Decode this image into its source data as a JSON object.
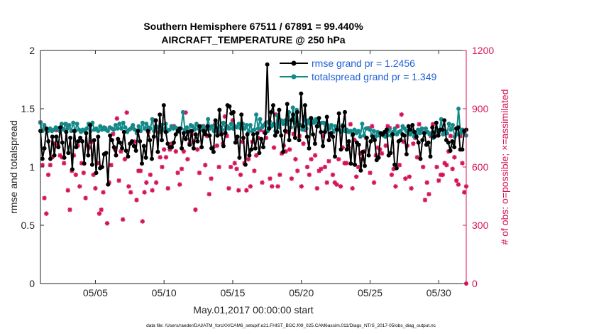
{
  "chart_data": {
    "type": "line",
    "title_line1": "Southern Hemisphere 67511 / 67891 = 99.440%",
    "title_line2": "AIRCRAFT_TEMPERATURE @ 250 hPa",
    "xlabel": "May.01,2017 00:00:00 start",
    "ylabel": "rmse and totalspread",
    "ylabel_right": "# of obs: o=possible; ×=assimilated",
    "footnote": "data file: /Users/raeder/DAI/ATM_forcXX/CAM6_setup/f.e21.FHIST_BGC.f09_025.CAM6assim.011/Diags_NTrS_2017-05/obs_diag_output.nc",
    "xlim": [
      1,
      32
    ],
    "ylim": [
      0,
      2
    ],
    "ylim_right": [
      0,
      1200
    ],
    "x_ticks": [
      5,
      10,
      15,
      20,
      25,
      30
    ],
    "x_tick_labels": [
      "05/05",
      "05/10",
      "05/15",
      "05/20",
      "05/25",
      "05/30"
    ],
    "y_ticks": [
      0,
      0.5,
      1,
      1.5,
      2
    ],
    "y_tick_labels": [
      "0",
      "0.5",
      "1",
      "1.5",
      "2"
    ],
    "y_right_ticks": [
      0,
      300,
      600,
      900,
      1200
    ],
    "y_right_tick_labels": [
      "0",
      "300",
      "600",
      "900",
      "1200"
    ],
    "colors": {
      "rmse": "#000000",
      "spread": "#138a8a",
      "obs": "#d4145a",
      "legend_text": "#1f5fd6",
      "axis_right": "#d4145a"
    },
    "series": [
      {
        "name": "rmse grand pr = 1.2456",
        "axis": "left",
        "values": [
          1.31,
          1.07,
          1.16,
          1.33,
          1.22,
          1.07,
          1.26,
          1.1,
          1.26,
          1.17,
          1.34,
          1.21,
          1.08,
          1.3,
          1.12,
          1.25,
          0.98,
          1.31,
          1.17,
          1.22,
          1.25,
          1.22,
          1.03,
          1.29,
          1.1,
          1.36,
          1.02,
          1.23,
          0.95,
          1.26,
          0.99,
          1.0,
          1.11,
          1.12,
          0.85,
          1.27,
          1.23,
          1.17,
          1.1,
          1.24,
          1.21,
          1.16,
          1.3,
          1.14,
          1.09,
          1.2,
          1.22,
          1.18,
          1.14,
          1.31,
          1.22,
          1.03,
          1.18,
          1.08,
          1.31,
          1.23,
          1.07,
          1.26,
          1.4,
          1.13,
          1.45,
          1.23,
          1.53,
          1.3,
          1.2,
          1.17,
          1.17,
          1.21,
          1.28,
          1.31,
          1.33,
          1.16,
          1.29,
          1.24,
          1.3,
          1.19,
          1.31,
          1.16,
          1.28,
          1.22,
          1.35,
          1.17,
          1.31,
          1.28,
          1.35,
          1.27,
          1.16,
          1.13,
          1.4,
          1.27,
          1.49,
          1.28,
          1.18,
          1.29,
          1.53,
          1.52,
          1.46,
          1.47,
          1.21,
          1.26,
          1.08,
          1.45,
          1.25,
          1.02,
          1.28,
          1.1,
          1.15,
          1.28,
          1.16,
          1.29,
          1.12,
          1.24,
          1.17,
          1.29,
          1.88,
          1.33,
          1.47,
          1.53,
          1.27,
          1.3,
          1.49,
          1.27,
          1.13,
          1.31,
          1.54,
          1.23,
          1.4,
          1.45,
          1.25,
          1.47,
          1.23,
          1.63,
          1.35,
          1.53,
          1.26,
          1.16,
          1.42,
          1.28,
          1.2,
          1.35,
          1.42,
          1.3,
          1.18,
          1.3,
          1.43,
          1.23,
          1.29,
          1.26,
          1.09,
          1.32,
          1.46,
          1.15,
          1.35,
          1.47,
          1.15,
          1.22,
          1.03,
          1.28,
          1.02,
          1.21,
          1.19,
          0.97,
          1.13,
          1.01,
          1.25,
          1.1,
          1.22,
          1.26,
          1.23,
          1.06,
          1.08,
          1.29,
          1.28,
          1.3,
          1.32,
          1.1,
          1.12,
          1.28,
          1.02,
          0.99,
          1.22,
          1.23,
          1.28,
          1.27,
          1.11,
          1.35,
          1.32,
          1.36,
          1.3,
          1.26,
          1.21,
          1.07,
          1.23,
          1.29,
          1.19,
          1.21,
          1.09,
          1.34,
          1.26,
          1.38,
          1.27,
          1.32,
          1.32,
          1.4,
          1.23,
          1.21,
          1.14,
          1.22,
          1.17,
          1.33,
          1.34,
          1.15,
          1.15,
          1.31,
          1.32
        ]
      },
      {
        "name": "totalspread grand pr = 1.349",
        "axis": "left",
        "values": [
          1.38,
          1.31,
          1.36,
          1.32,
          1.31,
          1.33,
          1.31,
          1.32,
          1.34,
          1.33,
          1.31,
          1.37,
          1.32,
          1.37,
          1.33,
          1.36,
          1.31,
          1.38,
          1.31,
          1.37,
          1.32,
          1.3,
          1.32,
          1.31,
          1.33,
          1.37,
          1.31,
          1.38,
          1.32,
          1.33,
          1.31,
          1.35,
          1.32,
          1.34,
          1.32,
          1.31,
          1.34,
          1.33,
          1.32,
          1.36,
          1.33,
          1.37,
          1.33,
          1.38,
          1.34,
          1.3,
          1.32,
          1.33,
          1.36,
          1.32,
          1.29,
          1.35,
          1.31,
          1.38,
          1.33,
          1.37,
          1.34,
          1.33,
          1.41,
          1.31,
          1.35,
          1.34,
          1.3,
          1.36,
          1.32,
          1.37,
          1.31,
          1.32,
          1.35,
          1.33,
          1.34,
          1.33,
          1.3,
          1.33,
          1.47,
          1.32,
          1.34,
          1.3,
          1.36,
          1.35,
          1.32,
          1.37,
          1.33,
          1.32,
          1.35,
          1.34,
          1.32,
          1.41,
          1.33,
          1.35,
          1.31,
          1.38,
          1.3,
          1.35,
          1.32,
          1.38,
          1.32,
          1.35,
          1.33,
          1.37,
          1.33,
          1.35,
          1.34,
          1.37,
          1.33,
          1.37,
          1.33,
          1.36,
          1.3,
          1.36,
          1.31,
          1.32,
          1.45,
          1.33,
          1.41,
          1.34,
          1.36,
          1.38,
          1.31,
          1.39,
          1.35,
          1.37,
          1.31,
          1.44,
          1.34,
          1.4,
          1.37,
          1.4,
          1.37,
          1.47,
          1.34,
          1.51,
          1.38,
          1.49,
          1.35,
          1.36,
          1.32,
          1.43,
          1.33,
          1.4,
          1.37,
          1.4,
          1.38,
          1.41,
          1.35,
          1.37,
          1.38,
          1.38,
          1.32,
          1.36,
          1.33,
          1.36,
          1.3,
          1.35,
          1.34,
          1.32,
          1.3,
          1.36,
          1.31,
          1.32,
          1.3,
          1.31,
          1.27,
          1.32,
          1.29,
          1.31,
          1.26,
          1.37,
          1.27,
          1.33,
          1.33,
          1.32,
          1.27,
          1.31,
          1.26,
          1.3,
          1.27,
          1.28,
          1.27,
          1.26,
          1.27,
          1.32,
          1.27,
          1.3,
          1.33,
          1.28,
          1.3,
          1.31,
          1.35,
          1.33,
          1.31,
          1.29,
          1.28,
          1.31,
          1.26,
          1.28,
          1.32,
          1.29,
          1.33,
          1.29,
          1.33,
          1.3,
          1.28,
          1.29,
          1.25,
          1.3,
          1.32,
          1.3,
          1.41,
          1.28,
          1.31,
          1.29,
          1.37,
          1.32,
          1.36,
          1.26,
          1.28,
          1.5,
          1.29,
          1.32,
          1.29,
          1.27
        ]
      },
      {
        "name": "possible / assimilated",
        "axis": "right",
        "marker": "star",
        "values": [
          830,
          610,
          440,
          360,
          560,
          610,
          650,
          720,
          790,
          710,
          660,
          650,
          620,
          820,
          480,
          380,
          580,
          660,
          560,
          710,
          500,
          620,
          570,
          440,
          710,
          700,
          730,
          560,
          490,
          620,
          360,
          380,
          470,
          800,
          310,
          520,
          610,
          770,
          690,
          850,
          530,
          680,
          330,
          640,
          880,
          500,
          470,
          810,
          730,
          430,
          580,
          580,
          320,
          470,
          520,
          780,
          560,
          480,
          840,
          520,
          780,
          650,
          600,
          690,
          650,
          490,
          690,
          720,
          810,
          680,
          570,
          510,
          590,
          680,
          880,
          640,
          720,
          770,
          730,
          380,
          690,
          570,
          800,
          810,
          610,
          760,
          460,
          540,
          700,
          820,
          710,
          600,
          780,
          720,
          860,
          760,
          490,
          600,
          840,
          620,
          590,
          480,
          560,
          730,
          620,
          480,
          640,
          500,
          730,
          580,
          660,
          750,
          790,
          520,
          780,
          750,
          830,
          540,
          500,
          700,
          870,
          500,
          560,
          670,
          710,
          680,
          780,
          690,
          540,
          770,
          640,
          580,
          760,
          500,
          720,
          790,
          600,
          560,
          640,
          830,
          660,
          490,
          580,
          590,
          760,
          600,
          520,
          630,
          770,
          560,
          520,
          510,
          640,
          500,
          700,
          620,
          620,
          700,
          820,
          490,
          740,
          550,
          600,
          670,
          640,
          680,
          750,
          800,
          570,
          810,
          520,
          660,
          700,
          690,
          670,
          770,
          710,
          810,
          800,
          560,
          590,
          500,
          810,
          610,
          870,
          730,
          540,
          710,
          550,
          490,
          720,
          750,
          650,
          820,
          790,
          600,
          430,
          520,
          460,
          760,
          820,
          760,
          600,
          530,
          560,
          560,
          620,
          610,
          680,
          760,
          590,
          650,
          530,
          510,
          760,
          620,
          470,
          500
        ]
      }
    ]
  }
}
